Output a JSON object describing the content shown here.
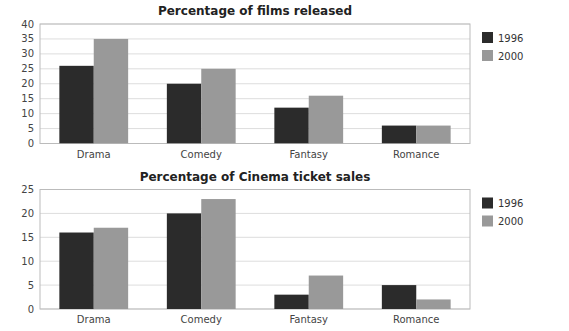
{
  "chart_data": [
    {
      "type": "bar",
      "title": "Percentage of films released",
      "categories": [
        "Drama",
        "Comedy",
        "Fantasy",
        "Romance"
      ],
      "series": [
        {
          "name": "1996",
          "color": "#2b2b2b",
          "values": [
            26,
            20,
            12,
            6
          ]
        },
        {
          "name": "2000",
          "color": "#999999",
          "values": [
            35,
            25,
            16,
            6
          ]
        }
      ],
      "ylim": [
        0,
        40
      ],
      "yticks": [
        0,
        5,
        10,
        15,
        20,
        25,
        30,
        35,
        40
      ],
      "grid": true,
      "legend": "right"
    },
    {
      "type": "bar",
      "title": "Percentage of Cinema ticket sales",
      "categories": [
        "Drama",
        "Comedy",
        "Fantasy",
        "Romance"
      ],
      "series": [
        {
          "name": "1996",
          "color": "#2b2b2b",
          "values": [
            16,
            20,
            3,
            5
          ]
        },
        {
          "name": "2000",
          "color": "#999999",
          "values": [
            17,
            23,
            7,
            2
          ]
        }
      ],
      "ylim": [
        0,
        25
      ],
      "yticks": [
        0,
        5,
        10,
        15,
        20,
        25
      ],
      "grid": true,
      "legend": "right"
    }
  ]
}
